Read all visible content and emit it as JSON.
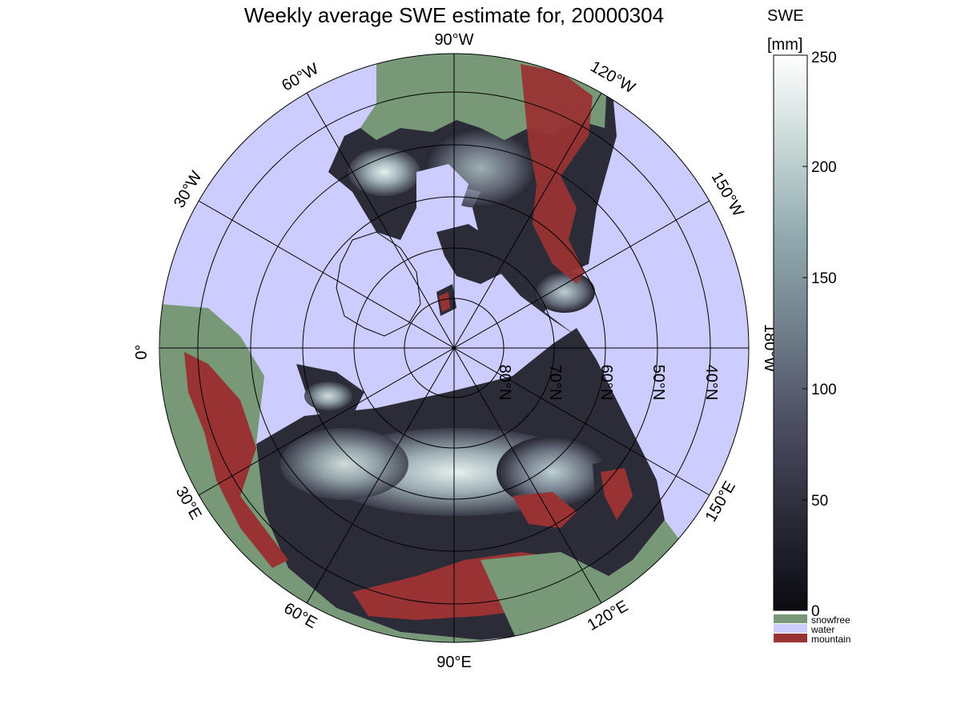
{
  "title": "Weekly average SWE estimate for, 20000304",
  "colorbar": {
    "label_line1": "SWE",
    "label_line2": "[mm]",
    "ticks": [
      "0",
      "50",
      "100",
      "150",
      "200",
      "250"
    ],
    "range": [
      0,
      250
    ],
    "gradient_colors": [
      "#0b0b10",
      "#2b2b38",
      "#4d4f63",
      "#6f7d88",
      "#90a9ae",
      "#c8d8d6",
      "#ffffff"
    ]
  },
  "legend": [
    {
      "label": "snowfree",
      "color": "#779977"
    },
    {
      "label": "water",
      "color": "#ccccff"
    },
    {
      "label": "mountain",
      "color": "#993333"
    }
  ],
  "meridian_labels": {
    "m90w": "90°W",
    "m120w": "120°W",
    "m150w": "150°W",
    "m180w": "180°W",
    "m150e": "150°E",
    "m120e": "120°E",
    "m90e": "90°E",
    "m60e": "60°E",
    "m30e": "30°E",
    "m0": "0°",
    "m30w": "30°W",
    "m60w": "60°W"
  },
  "parallel_labels": {
    "p80": "80°N",
    "p70": "70°N",
    "p60": "60°N",
    "p50": "50°N",
    "p40": "40°N"
  },
  "map_colors": {
    "water": "#ccccff",
    "snowfree": "#779977",
    "mountain": "#993333",
    "swe_low": "#1a1a22",
    "swe_mid": "#6f7387",
    "swe_high": "#d8e6e4",
    "grid": "#000000"
  }
}
